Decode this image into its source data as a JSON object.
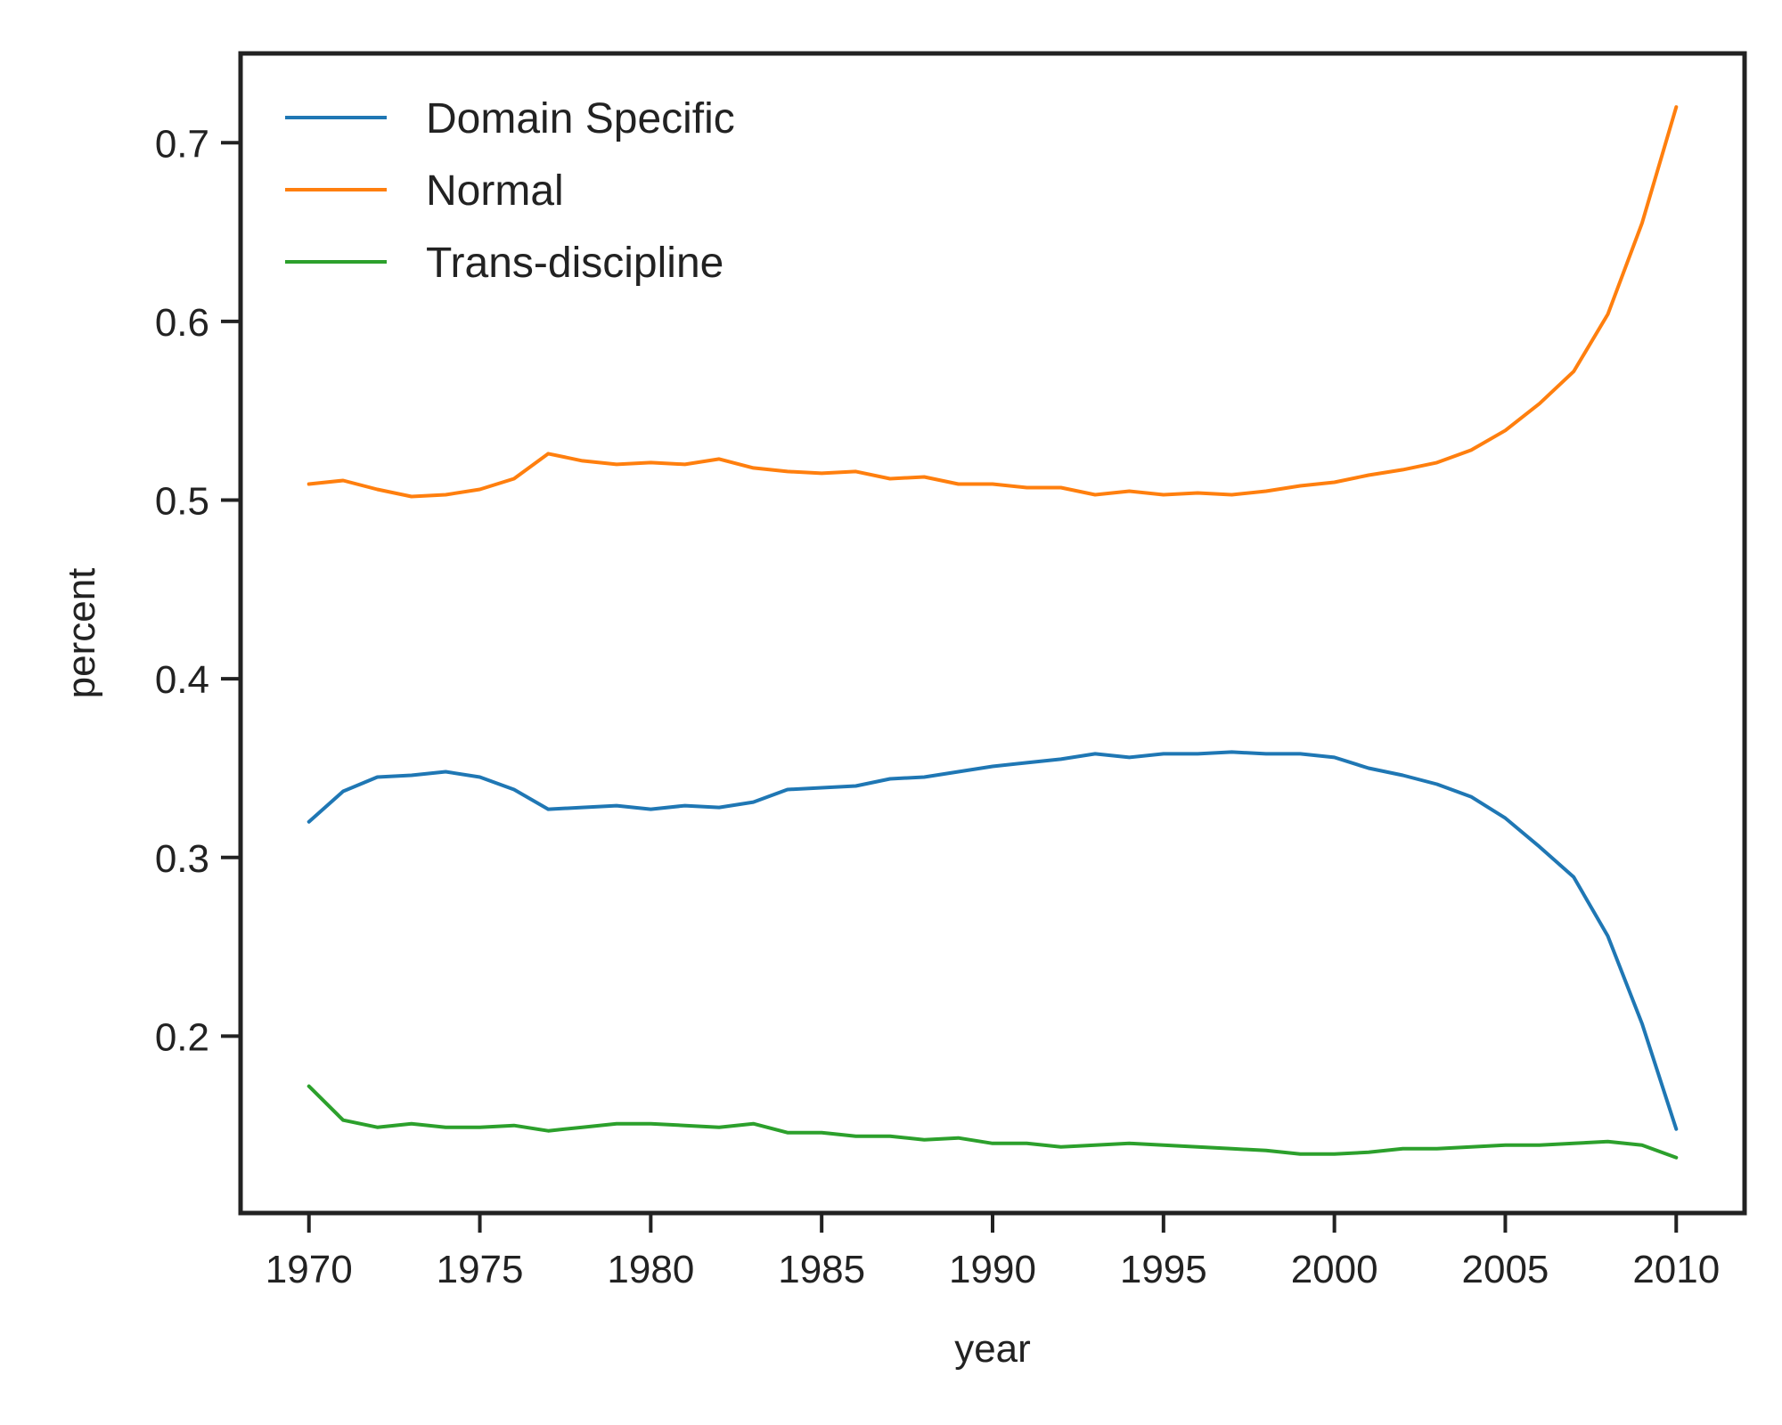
{
  "chart_data": {
    "type": "line",
    "title": "",
    "xlabel": "year",
    "ylabel": "percent",
    "xlim": [
      1968,
      2012
    ],
    "ylim": [
      0.101,
      0.75
    ],
    "xticks": [
      1970,
      1975,
      1980,
      1985,
      1990,
      1995,
      2000,
      2005,
      2010
    ],
    "xtick_labels": [
      "1970",
      "1975",
      "1980",
      "1985",
      "1990",
      "1995",
      "2000",
      "2005",
      "2010"
    ],
    "yticks": [
      0.2,
      0.3,
      0.4,
      0.5,
      0.6,
      0.7
    ],
    "ytick_labels": [
      "0.2",
      "0.3",
      "0.4",
      "0.5",
      "0.6",
      "0.7"
    ],
    "grid": false,
    "legend_position": "top-left",
    "x": [
      1970,
      1971,
      1972,
      1973,
      1974,
      1975,
      1976,
      1977,
      1978,
      1979,
      1980,
      1981,
      1982,
      1983,
      1984,
      1985,
      1986,
      1987,
      1988,
      1989,
      1990,
      1991,
      1992,
      1993,
      1994,
      1995,
      1996,
      1997,
      1998,
      1999,
      2000,
      2001,
      2002,
      2003,
      2004,
      2005,
      2006,
      2007,
      2008,
      2009,
      2010
    ],
    "series": [
      {
        "name": "Domain Specific",
        "color": "#1f77b4",
        "values": [
          0.32,
          0.337,
          0.345,
          0.346,
          0.348,
          0.345,
          0.338,
          0.327,
          0.328,
          0.329,
          0.327,
          0.329,
          0.328,
          0.331,
          0.338,
          0.339,
          0.34,
          0.344,
          0.345,
          0.348,
          0.351,
          0.353,
          0.355,
          0.358,
          0.356,
          0.358,
          0.358,
          0.359,
          0.358,
          0.358,
          0.356,
          0.35,
          0.346,
          0.341,
          0.334,
          0.322,
          0.306,
          0.289,
          0.256,
          0.207,
          0.148
        ]
      },
      {
        "name": "Normal",
        "color": "#ff7f0e",
        "values": [
          0.509,
          0.511,
          0.506,
          0.502,
          0.503,
          0.506,
          0.512,
          0.526,
          0.522,
          0.52,
          0.521,
          0.52,
          0.523,
          0.518,
          0.516,
          0.515,
          0.516,
          0.512,
          0.513,
          0.509,
          0.509,
          0.507,
          0.507,
          0.503,
          0.505,
          0.503,
          0.504,
          0.503,
          0.505,
          0.508,
          0.51,
          0.514,
          0.517,
          0.521,
          0.528,
          0.539,
          0.554,
          0.572,
          0.604,
          0.655,
          0.72
        ]
      },
      {
        "name": "Trans-discipline",
        "color": "#2ca02c",
        "values": [
          0.172,
          0.153,
          0.149,
          0.151,
          0.149,
          0.149,
          0.15,
          0.147,
          0.149,
          0.151,
          0.151,
          0.15,
          0.149,
          0.151,
          0.146,
          0.146,
          0.144,
          0.144,
          0.142,
          0.143,
          0.14,
          0.14,
          0.138,
          0.139,
          0.14,
          0.139,
          0.138,
          0.137,
          0.136,
          0.134,
          0.134,
          0.135,
          0.137,
          0.137,
          0.138,
          0.139,
          0.139,
          0.14,
          0.141,
          0.139,
          0.132
        ]
      }
    ]
  }
}
